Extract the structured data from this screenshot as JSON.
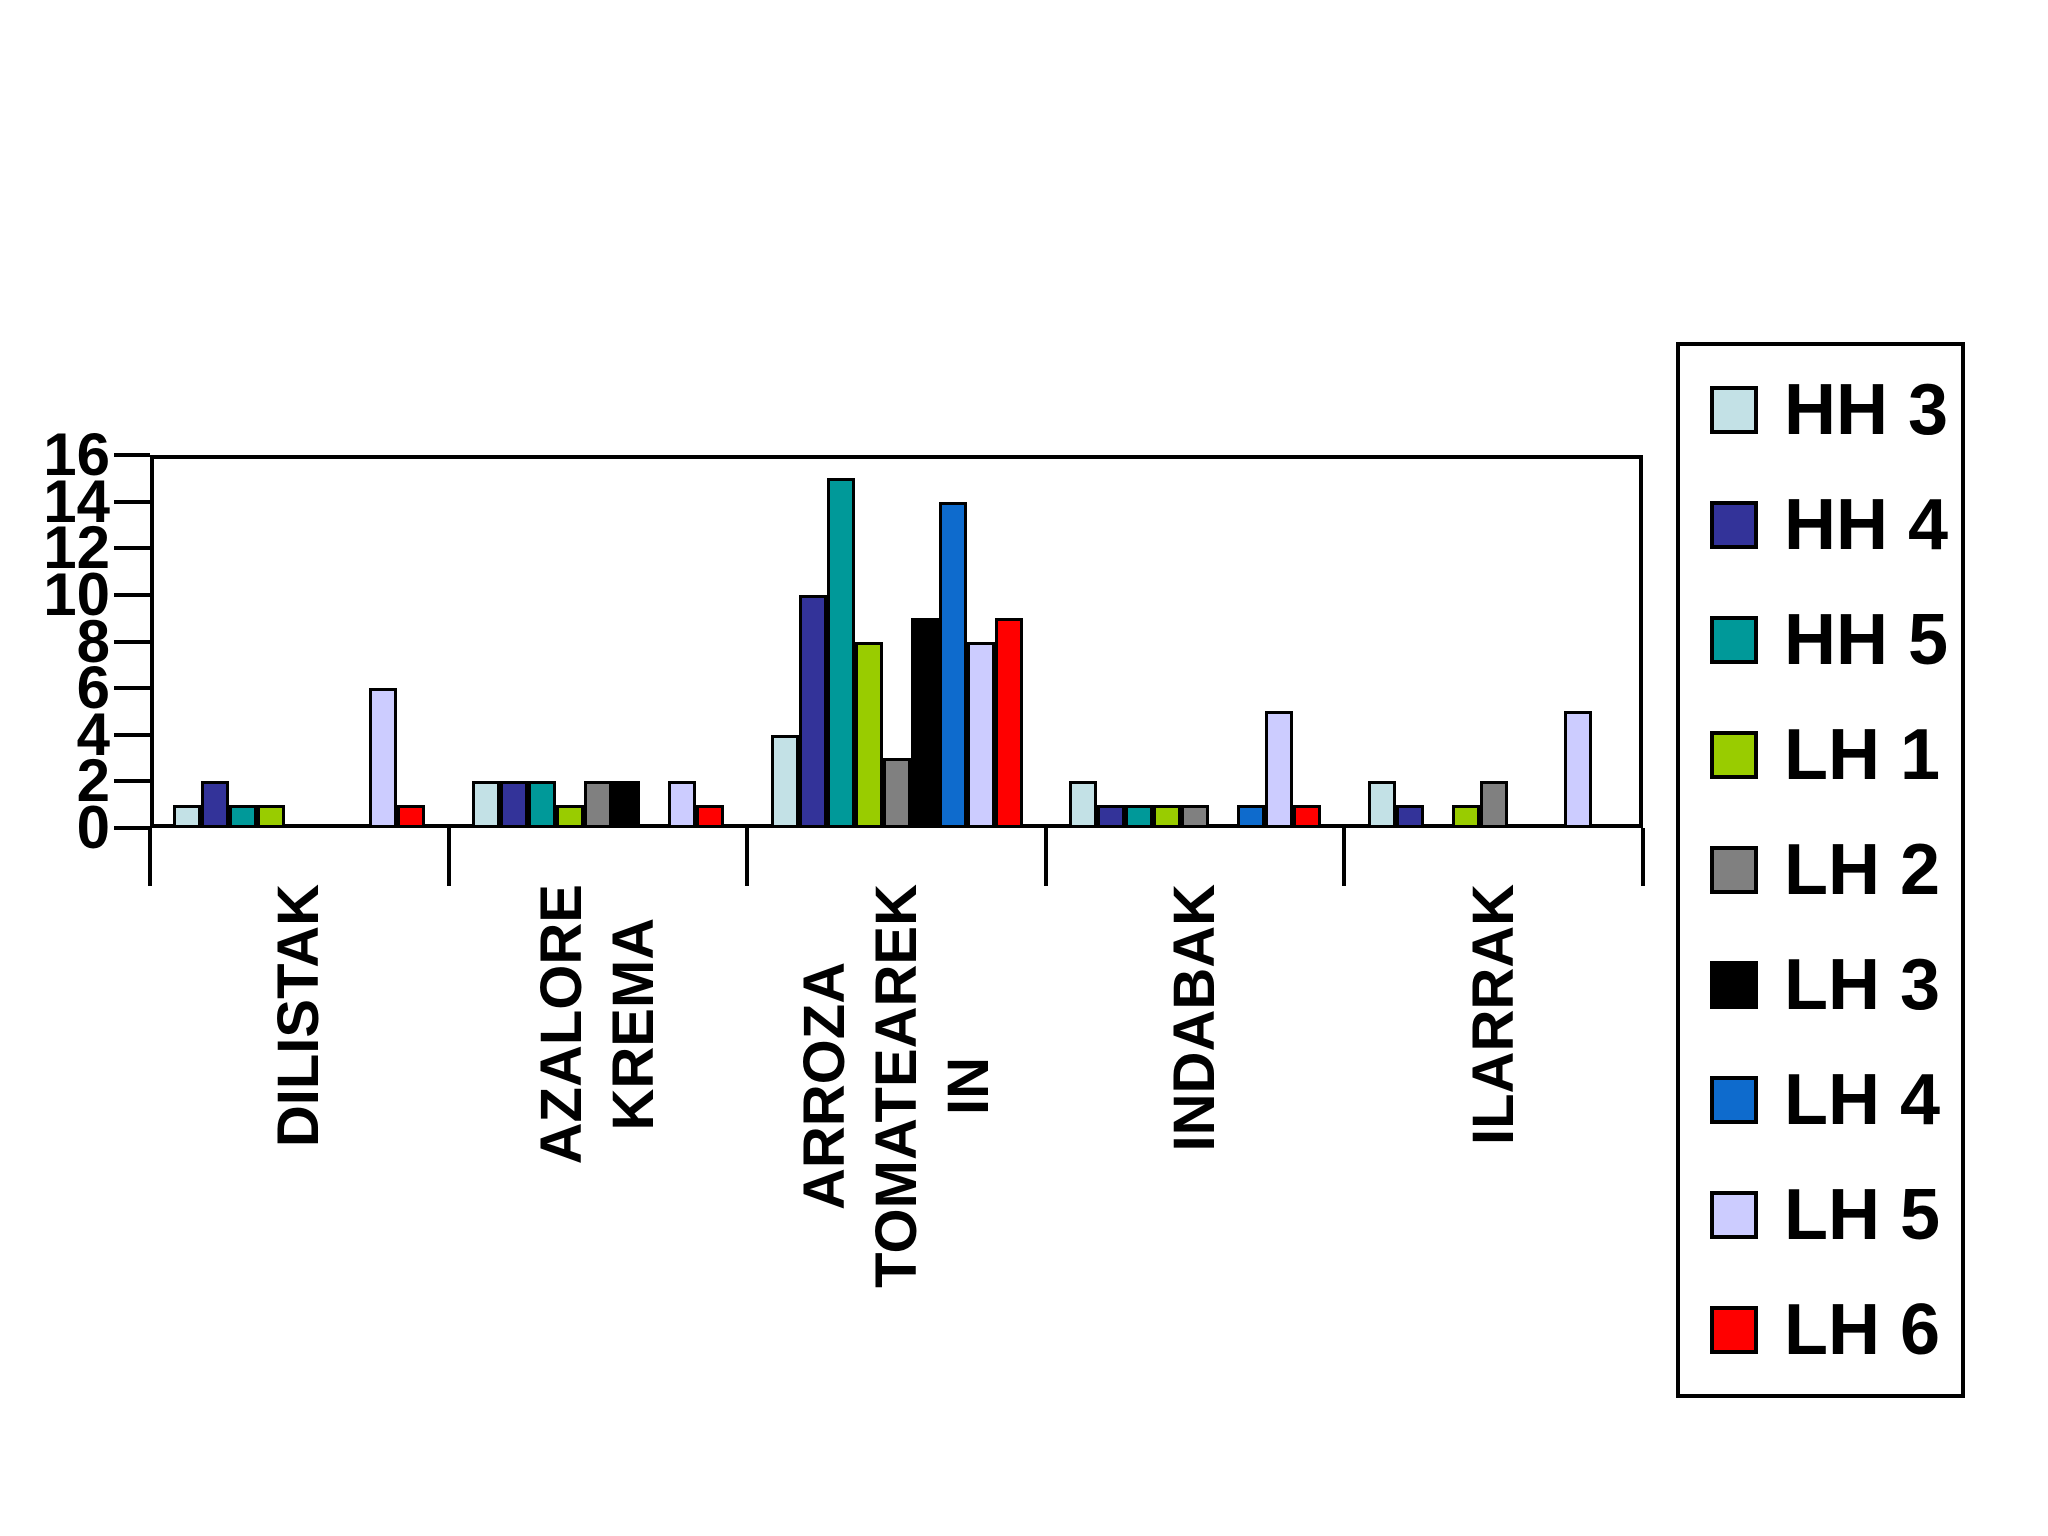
{
  "chart_data": {
    "type": "bar",
    "title": "",
    "categories": [
      "DILISTAK",
      "AZALORE KREMA",
      "ARROZA TOMATEAREKIN",
      "INDABAK",
      "ILARRAK"
    ],
    "category_label_lines": [
      [
        "DILISTAK"
      ],
      [
        "AZALORE",
        "KREMA"
      ],
      [
        "ARROZA",
        "TOMATEAREK",
        "IN"
      ],
      [
        "INDABAK"
      ],
      [
        "ILARRAK"
      ]
    ],
    "series": [
      {
        "name": "HH 3",
        "color": "#C3E1E6",
        "values": [
          1,
          2,
          4,
          2,
          2
        ]
      },
      {
        "name": "HH 4",
        "color": "#333399",
        "values": [
          2,
          2,
          10,
          1,
          1
        ]
      },
      {
        "name": "HH 5",
        "color": "#009999",
        "values": [
          1,
          2,
          15,
          1,
          0
        ]
      },
      {
        "name": "LH 1",
        "color": "#99CC00",
        "values": [
          1,
          1,
          8,
          1,
          1
        ]
      },
      {
        "name": "LH 2",
        "color": "#808080",
        "values": [
          0,
          2,
          3,
          1,
          2
        ]
      },
      {
        "name": "LH 3",
        "color": "#000000",
        "values": [
          0,
          2,
          9,
          0,
          0
        ]
      },
      {
        "name": "LH 4",
        "color": "#0E6BCD",
        "values": [
          0,
          0,
          14,
          1,
          0
        ]
      },
      {
        "name": "LH 5",
        "color": "#CCCCFF",
        "values": [
          6,
          2,
          8,
          5,
          5
        ]
      },
      {
        "name": "LH 6",
        "color": "#FF0000",
        "values": [
          1,
          1,
          9,
          1,
          0
        ]
      }
    ],
    "y_axis": {
      "min": 0,
      "max": 16,
      "tick_step": 2,
      "tick_labels": [
        "0",
        "2",
        "4",
        "6",
        "8",
        "10",
        "12",
        "14",
        "16"
      ]
    },
    "legend_position": "right",
    "grid": "none",
    "plot_border_color": "#000000",
    "background_color": "#FFFFFF"
  }
}
